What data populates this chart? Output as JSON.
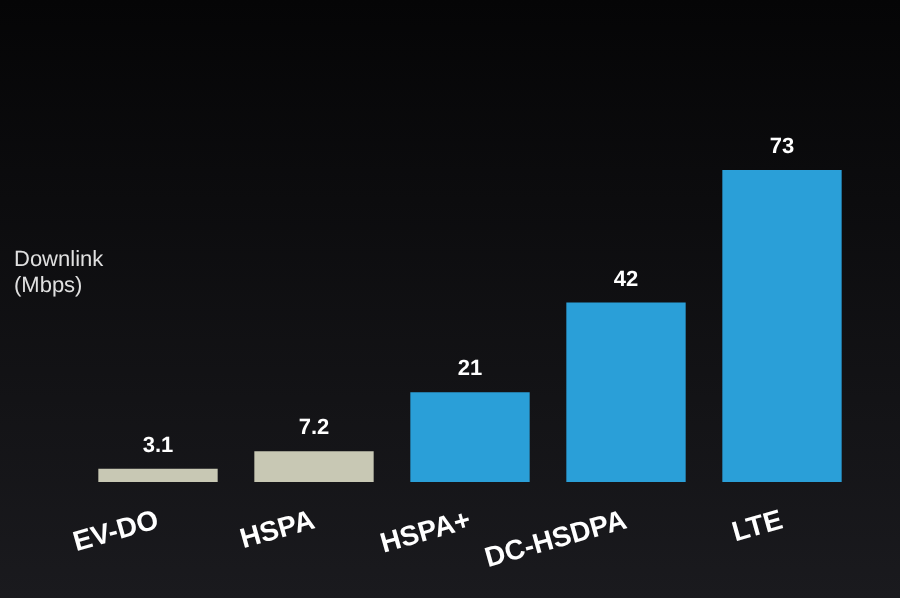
{
  "chart_data": {
    "type": "bar",
    "ylabel": "Downlink (Mbps)",
    "categories": [
      "EV-DO",
      "HSPA",
      "HSPA+",
      "DC-HSDPA",
      "LTE"
    ],
    "values": [
      3.1,
      7.2,
      21,
      42,
      73
    ],
    "colors": [
      "#c8c8b4",
      "#c8c8b4",
      "#2a9fd8",
      "#2a9fd8",
      "#2a9fd8"
    ],
    "data_labels": true
  }
}
